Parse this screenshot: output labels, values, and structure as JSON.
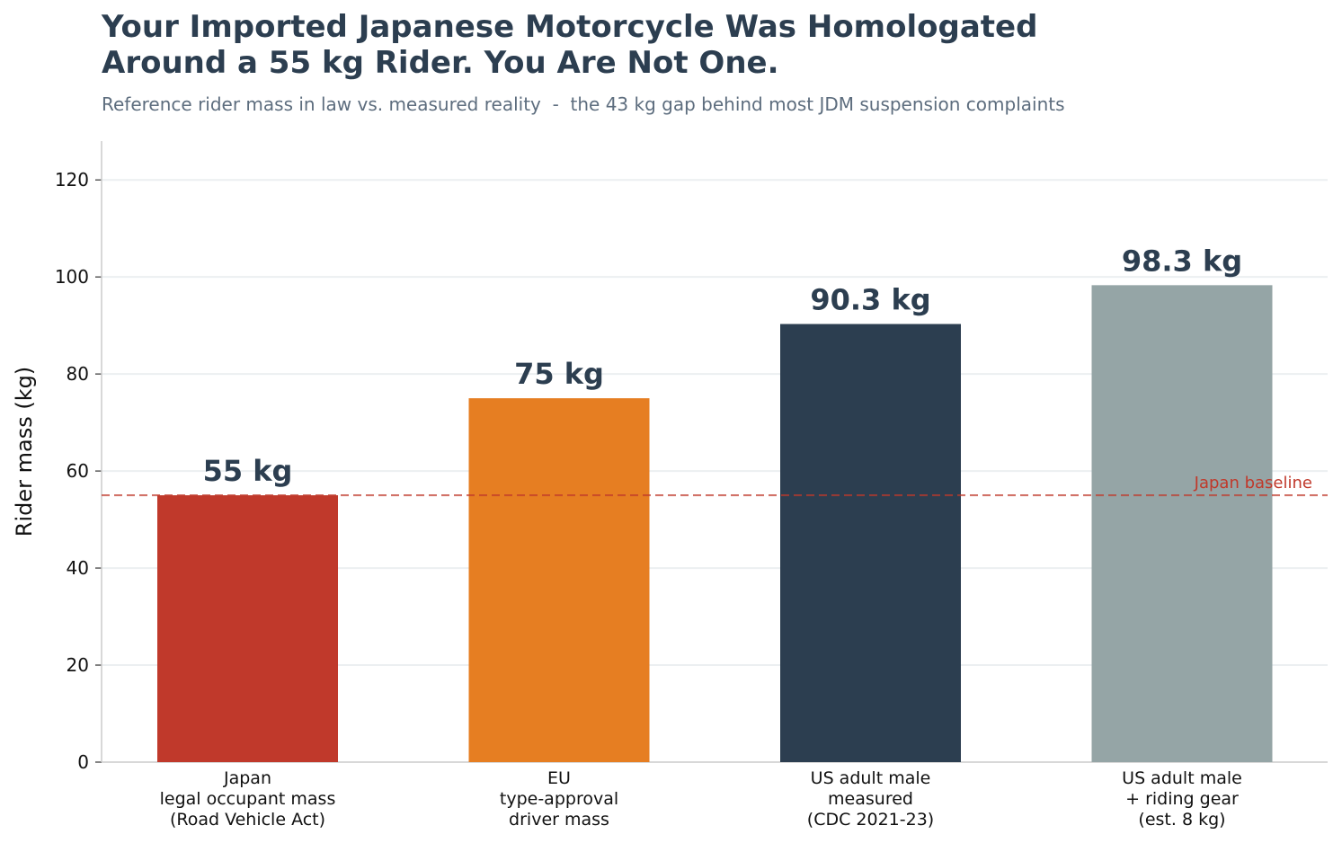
{
  "title_lines": [
    "Your Imported Japanese Motorcycle Was Homologated",
    "Around a 55 kg Rider. You Are Not One."
  ],
  "subtitle": "Reference rider mass in law vs. measured reality  -  the 43 kg gap behind most JDM suspension complaints",
  "colors": {
    "text_dark": "#2c3e50",
    "subtitle": "#5d6d7e",
    "grid": "#eceff1",
    "axis": "#cccccc",
    "baseline": "#c0392b"
  },
  "chart_data": {
    "type": "bar",
    "ylabel": "Rider mass (kg)",
    "ylim": [
      0,
      128
    ],
    "yticks": [
      0,
      20,
      40,
      60,
      80,
      100,
      120
    ],
    "grid": true,
    "categories": [
      [
        "Japan",
        "legal occupant mass",
        "(Road Vehicle Act)"
      ],
      [
        "EU",
        "type-approval",
        "driver mass"
      ],
      [
        "US adult male",
        "measured",
        "(CDC 2021-23)"
      ],
      [
        "US adult male",
        "+ riding gear",
        "(est. 8 kg)"
      ]
    ],
    "values": [
      55,
      75,
      90.3,
      98.3
    ],
    "value_labels": [
      "55 kg",
      "75 kg",
      "90.3 kg",
      "98.3 kg"
    ],
    "bar_colors": [
      "#c0392b",
      "#e67e22",
      "#2c3e50",
      "#95a5a6"
    ],
    "reference_line": {
      "value": 55,
      "label": "Japan baseline",
      "style": "dashed"
    }
  }
}
